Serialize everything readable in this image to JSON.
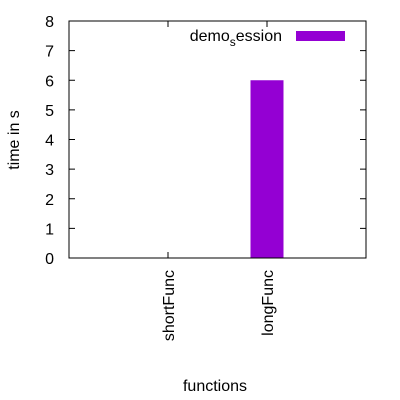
{
  "chart_data": {
    "type": "bar",
    "categories": [
      "shortFunc",
      "longFunc"
    ],
    "series": [
      {
        "name": "demo_session",
        "values": [
          0,
          6
        ],
        "color": "#9400d3"
      }
    ],
    "ylim": [
      0,
      8
    ],
    "yticks": [
      "0",
      "1",
      "2",
      "3",
      "4",
      "5",
      "6",
      "7",
      "8"
    ],
    "xlabel": "functions",
    "ylabel": "time in s",
    "legend": {
      "position": "top-right",
      "text_main": "demo",
      "text_sub": "s",
      "text_rest": "ession"
    },
    "grid": false
  }
}
